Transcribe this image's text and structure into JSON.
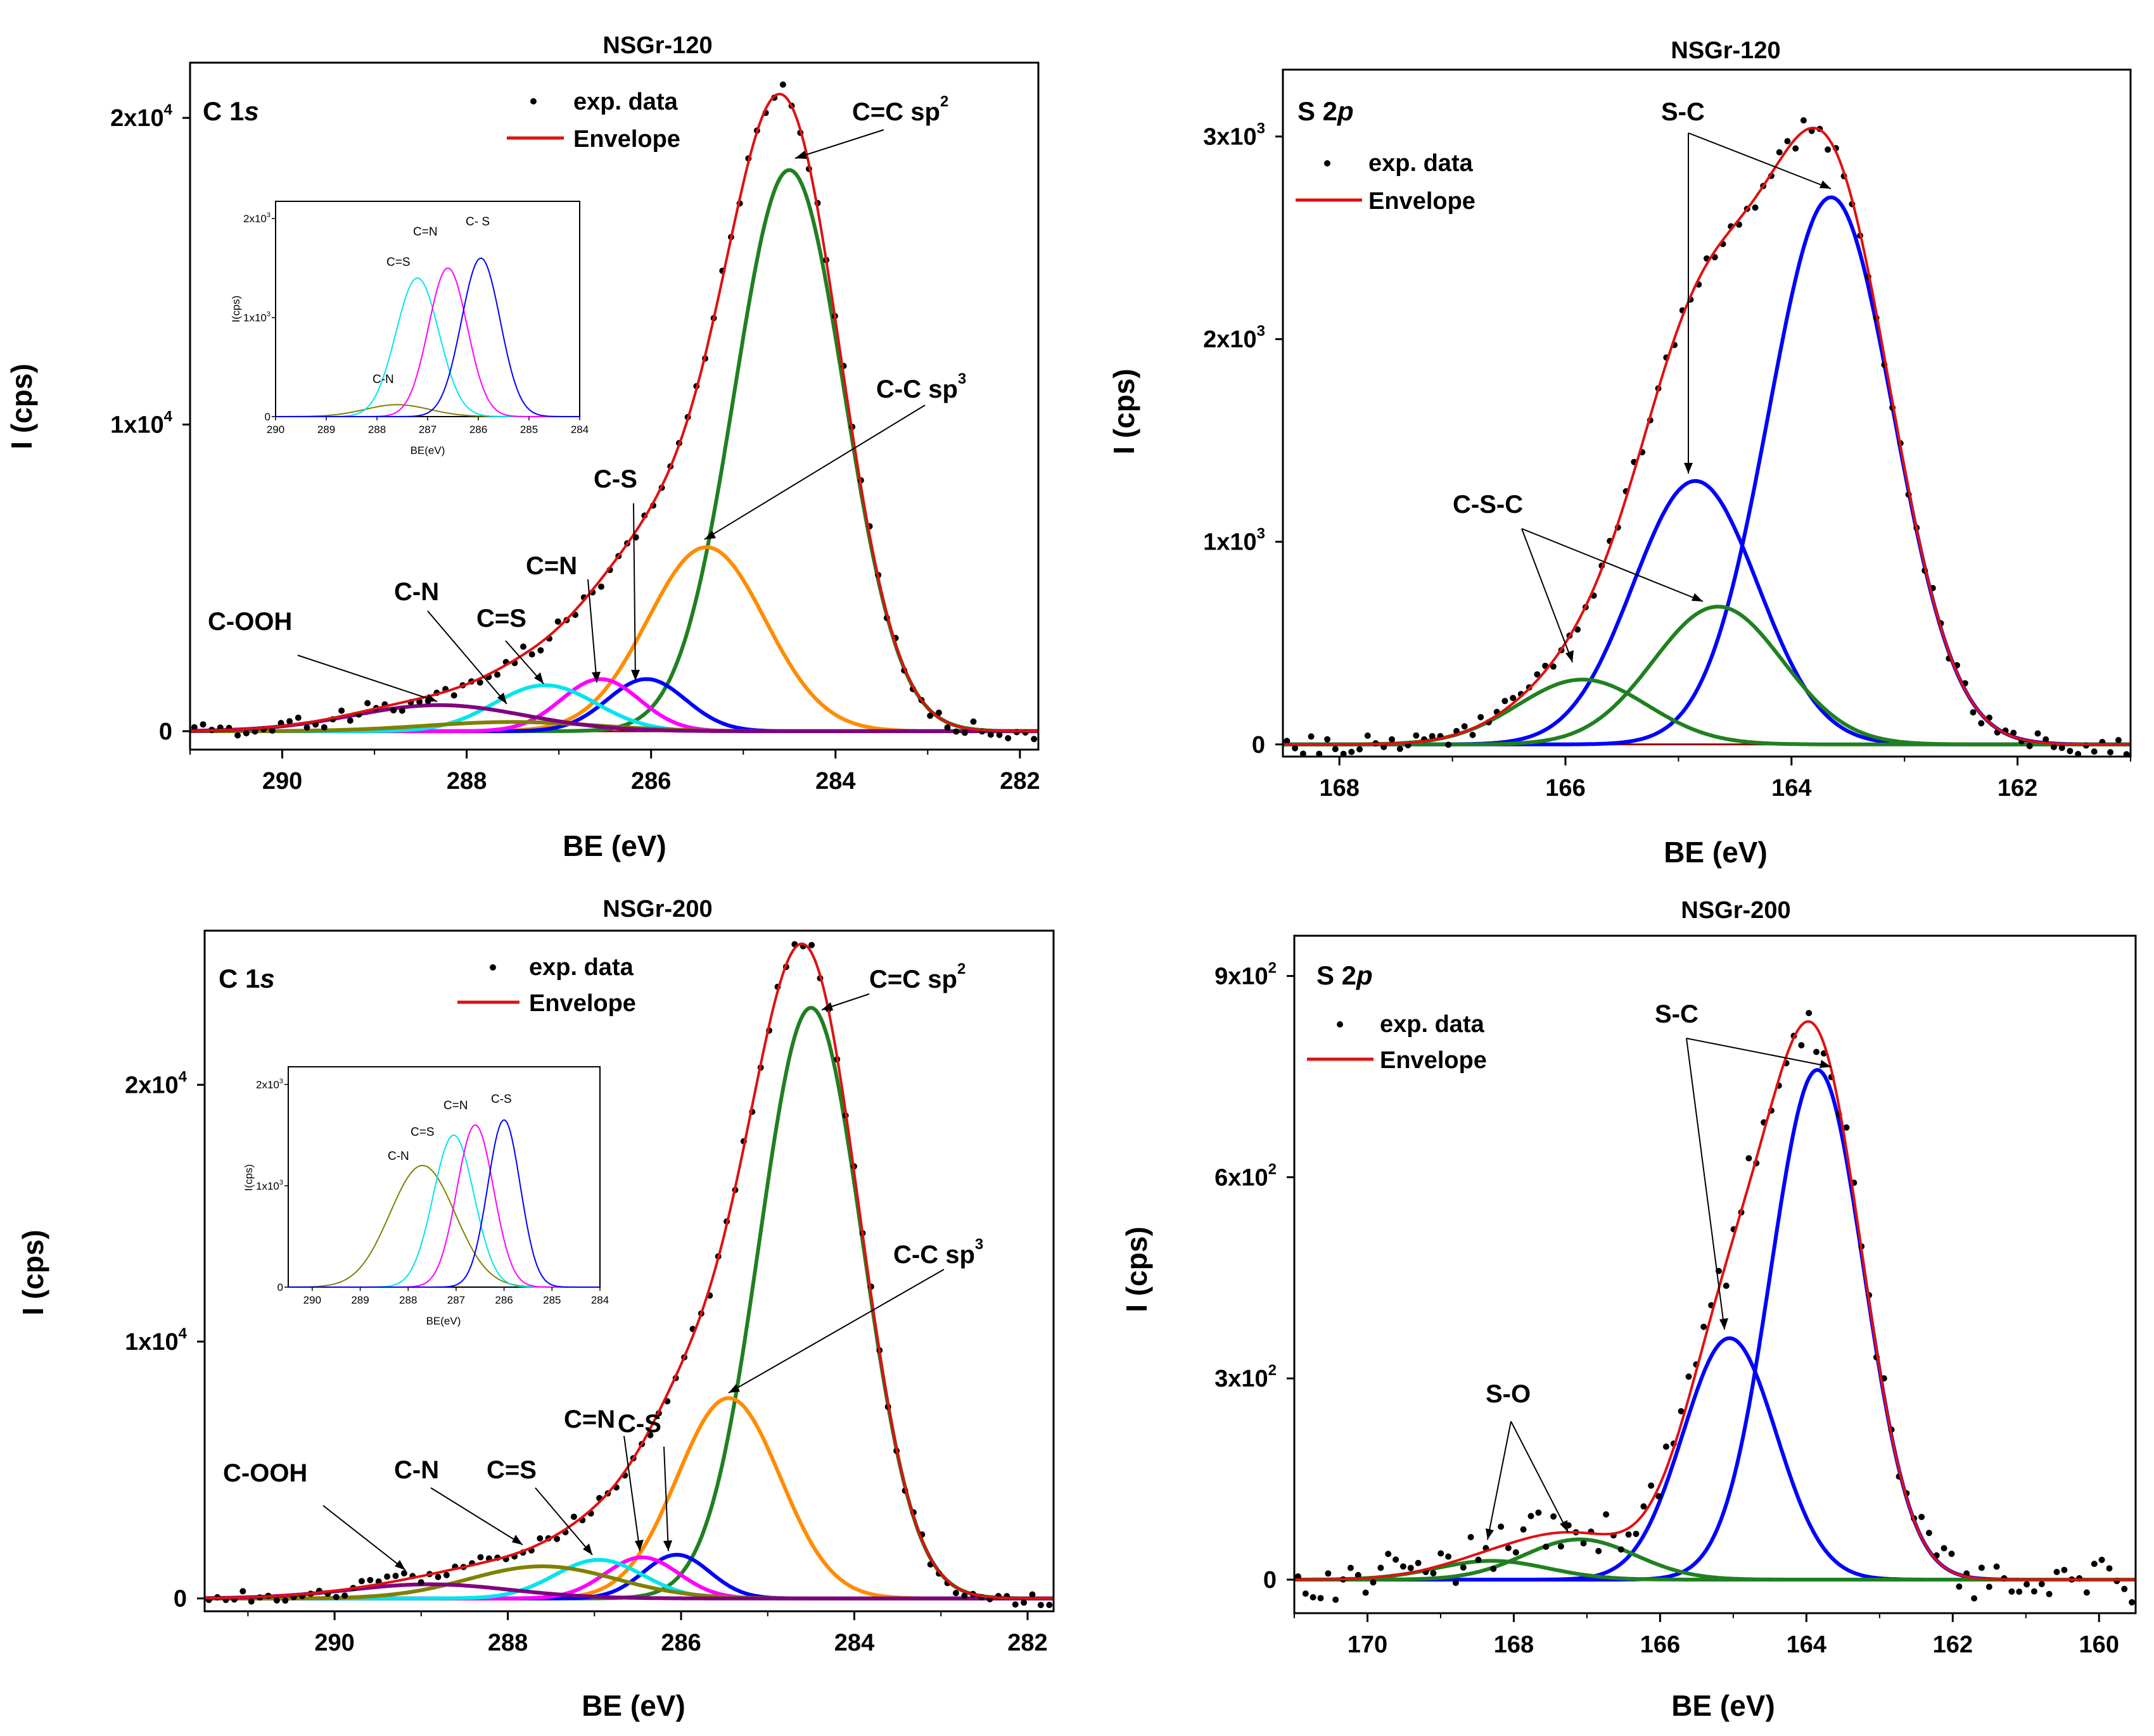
{
  "chart_data": [
    {
      "type": "line",
      "title": "NSGr-120",
      "panel_label": "C 1",
      "panel_label_italic": "s",
      "xlabel": "BE (eV)",
      "ylabel": "I (cps)",
      "xlim": [
        291,
        281.8
      ],
      "ylim": [
        -600,
        21800
      ],
      "xticks": [
        290,
        288,
        286,
        284,
        282
      ],
      "xticklabels": [
        "290",
        "288",
        "286",
        "284",
        "282"
      ],
      "yticks": [
        {
          "value": 0,
          "base": "0",
          "exp": ""
        },
        {
          "value": 10000,
          "base": "1x10",
          "exp": "4"
        },
        {
          "value": 20000,
          "base": "2x10",
          "exp": "4"
        }
      ],
      "legend": [
        "exp. data",
        "Envelope"
      ],
      "components": [
        {
          "name": "C=C sp2",
          "color": "#208020",
          "center": 284.5,
          "fwhm": 1.4,
          "amp": 18300
        },
        {
          "name": "C-C sp3",
          "color": "#ff8c00",
          "center": 285.4,
          "fwhm": 1.5,
          "amp": 6000
        },
        {
          "name": "C-S",
          "color": "#0000ff",
          "center": 286.05,
          "fwhm": 1.0,
          "amp": 1700
        },
        {
          "name": "C=N",
          "color": "#ff00ff",
          "center": 286.55,
          "fwhm": 1.0,
          "amp": 1700
        },
        {
          "name": "C=S",
          "color": "#00e5ee",
          "center": 287.15,
          "fwhm": 1.3,
          "amp": 1500
        },
        {
          "name": "C-N",
          "color": "#808000",
          "center": 287.5,
          "fwhm": 2.2,
          "amp": 300
        },
        {
          "name": "C-OOH",
          "color": "#800080",
          "center": 288.3,
          "fwhm": 2.2,
          "amp": 850
        }
      ],
      "annotations": [
        {
          "base": "C=C sp",
          "sup": "2"
        },
        {
          "base": "C-C sp",
          "sup": "3"
        },
        {
          "base": "C-S"
        },
        {
          "base": "C=N"
        },
        {
          "base": "C=S"
        },
        {
          "base": "C-N"
        },
        {
          "base": "C-OOH"
        }
      ],
      "inset": {
        "xlim": [
          290,
          284
        ],
        "ylim": [
          0,
          2.0
        ],
        "xticklabels": [
          "290",
          "289",
          "288",
          "287",
          "286",
          "285",
          "284"
        ],
        "yticks": [
          {
            "value": 0,
            "base": "0",
            "exp": ""
          },
          {
            "value": 1.0,
            "base": "1x10",
            "exp": "3"
          },
          {
            "value": 2.0,
            "base": "2x10",
            "exp": "3"
          }
        ],
        "xlabel": "BE(eV)",
        "ylabel": "I(cps)",
        "components": [
          {
            "name": "C-N",
            "color": "#808000",
            "center": 287.6,
            "fwhm": 1.5,
            "amp": 0.12
          },
          {
            "name": "C=S",
            "color": "#00e5ee",
            "center": 287.2,
            "fwhm": 1.0,
            "amp": 1.4
          },
          {
            "name": "C=N",
            "color": "#ff00ff",
            "center": 286.6,
            "fwhm": 0.9,
            "amp": 1.5
          },
          {
            "name": "C- S",
            "color": "#0000ff",
            "center": 285.95,
            "fwhm": 0.9,
            "amp": 1.6
          }
        ]
      }
    },
    {
      "type": "line",
      "title": "NSGr-120",
      "panel_label": "S 2",
      "panel_label_italic": "p",
      "xlabel": "BE (eV)",
      "ylabel": "I (cps)",
      "xlim": [
        168.5,
        161
      ],
      "ylim": [
        -60,
        3330
      ],
      "xticks": [
        168,
        166,
        164,
        162
      ],
      "xticklabels": [
        "168",
        "166",
        "164",
        "162"
      ],
      "yticks": [
        {
          "value": 0,
          "base": "0",
          "exp": ""
        },
        {
          "value": 1000,
          "base": "1x10",
          "exp": "3"
        },
        {
          "value": 2000,
          "base": "2x10",
          "exp": "3"
        },
        {
          "value": 3000,
          "base": "3x10",
          "exp": "3"
        }
      ],
      "legend": [
        "exp. data",
        "Envelope"
      ],
      "components": [
        {
          "name": "S-C",
          "color": "#0000ff",
          "center": 163.65,
          "fwhm": 1.3,
          "amp": 2700
        },
        {
          "name": "S-C",
          "color": "#0000ff",
          "center": 164.85,
          "fwhm": 1.3,
          "amp": 1300
        },
        {
          "name": "C-S-C",
          "color": "#208020",
          "center": 164.65,
          "fwhm": 1.35,
          "amp": 680
        },
        {
          "name": "C-S-C",
          "color": "#208020",
          "center": 165.85,
          "fwhm": 1.35,
          "amp": 320
        }
      ],
      "annotations": [
        {
          "base": "S-C"
        },
        {
          "base": "C-S-C"
        }
      ]
    },
    {
      "type": "line",
      "title": "NSGr-200",
      "panel_label": "C 1",
      "panel_label_italic": "s",
      "xlabel": "BE (eV)",
      "ylabel": "I (cps)",
      "xlim": [
        291.5,
        281.7
      ],
      "ylim": [
        -500,
        26000
      ],
      "xticks": [
        290,
        288,
        286,
        284,
        282
      ],
      "xticklabels": [
        "290",
        "288",
        "286",
        "284",
        "282"
      ],
      "yticks": [
        {
          "value": 0,
          "base": "0",
          "exp": ""
        },
        {
          "value": 10000,
          "base": "1x10",
          "exp": "4"
        },
        {
          "value": 20000,
          "base": "2x10",
          "exp": "4"
        }
      ],
      "legend": [
        "exp. data",
        "Envelope"
      ],
      "components": [
        {
          "name": "C=C sp2",
          "color": "#208020",
          "center": 284.5,
          "fwhm": 1.4,
          "amp": 23000
        },
        {
          "name": "C-C sp3",
          "color": "#ff8c00",
          "center": 285.45,
          "fwhm": 1.4,
          "amp": 7800
        },
        {
          "name": "C-S",
          "color": "#0000ff",
          "center": 286.05,
          "fwhm": 0.9,
          "amp": 1700
        },
        {
          "name": "C=N",
          "color": "#ff00ff",
          "center": 286.45,
          "fwhm": 1.0,
          "amp": 1600
        },
        {
          "name": "C=S",
          "color": "#00e5ee",
          "center": 286.95,
          "fwhm": 1.2,
          "amp": 1500
        },
        {
          "name": "C-N",
          "color": "#808000",
          "center": 287.6,
          "fwhm": 2.0,
          "amp": 1250
        },
        {
          "name": "C-OOH",
          "color": "#800080",
          "center": 288.9,
          "fwhm": 2.2,
          "amp": 550
        }
      ],
      "annotations": [
        {
          "base": "C=C sp",
          "sup": "2"
        },
        {
          "base": "C-C sp",
          "sup": "3"
        },
        {
          "base": "C-S"
        },
        {
          "base": "C=N"
        },
        {
          "base": "C=S"
        },
        {
          "base": "C-N"
        },
        {
          "base": "C-OOH"
        }
      ],
      "inset": {
        "xlim": [
          290.5,
          284
        ],
        "ylim": [
          0,
          2.0
        ],
        "xticklabels": [
          "290",
          "289",
          "288",
          "287",
          "286",
          "285",
          "284"
        ],
        "yticks": [
          {
            "value": 0,
            "base": "0",
            "exp": ""
          },
          {
            "value": 1.0,
            "base": "1x10",
            "exp": "3"
          },
          {
            "value": 2.0,
            "base": "2x10",
            "exp": "3"
          }
        ],
        "xlabel": "BE(eV)",
        "ylabel": "I(cps)",
        "components": [
          {
            "name": "C-N",
            "color": "#808000",
            "center": 287.7,
            "fwhm": 1.6,
            "amp": 1.2
          },
          {
            "name": "C=S",
            "color": "#00e5ee",
            "center": 287.05,
            "fwhm": 1.0,
            "amp": 1.5
          },
          {
            "name": "C=N",
            "color": "#ff00ff",
            "center": 286.6,
            "fwhm": 0.9,
            "amp": 1.6
          },
          {
            "name": "C-S",
            "color": "#0000ff",
            "center": 286.0,
            "fwhm": 0.8,
            "amp": 1.65
          }
        ]
      }
    },
    {
      "type": "line",
      "title": "NSGr-200",
      "panel_label": "S 2",
      "panel_label_italic": "p",
      "xlabel": "BE (eV)",
      "ylabel": "I (cps)",
      "xlim": [
        171,
        159.5
      ],
      "ylim": [
        -50,
        960
      ],
      "xticks": [
        170,
        168,
        166,
        164,
        162,
        160
      ],
      "xticklabels": [
        "170",
        "168",
        "166",
        "164",
        "162",
        "160"
      ],
      "yticks": [
        {
          "value": 0,
          "base": "0",
          "exp": ""
        },
        {
          "value": 300,
          "base": "3x10",
          "exp": "2"
        },
        {
          "value": 600,
          "base": "6x10",
          "exp": "2"
        },
        {
          "value": 900,
          "base": "9x10",
          "exp": "2"
        }
      ],
      "legend": [
        "exp. data",
        "Envelope"
      ],
      "components": [
        {
          "name": "S-C",
          "color": "#0000ff",
          "center": 163.85,
          "fwhm": 1.5,
          "amp": 760
        },
        {
          "name": "S-C",
          "color": "#0000ff",
          "center": 165.05,
          "fwhm": 1.5,
          "amp": 360
        },
        {
          "name": "S-O",
          "color": "#208020",
          "center": 167.1,
          "fwhm": 1.8,
          "amp": 60
        },
        {
          "name": "S-O",
          "color": "#208020",
          "center": 168.3,
          "fwhm": 1.8,
          "amp": 28
        }
      ],
      "annotations": [
        {
          "base": "S-C"
        },
        {
          "base": "S-O"
        }
      ]
    }
  ]
}
